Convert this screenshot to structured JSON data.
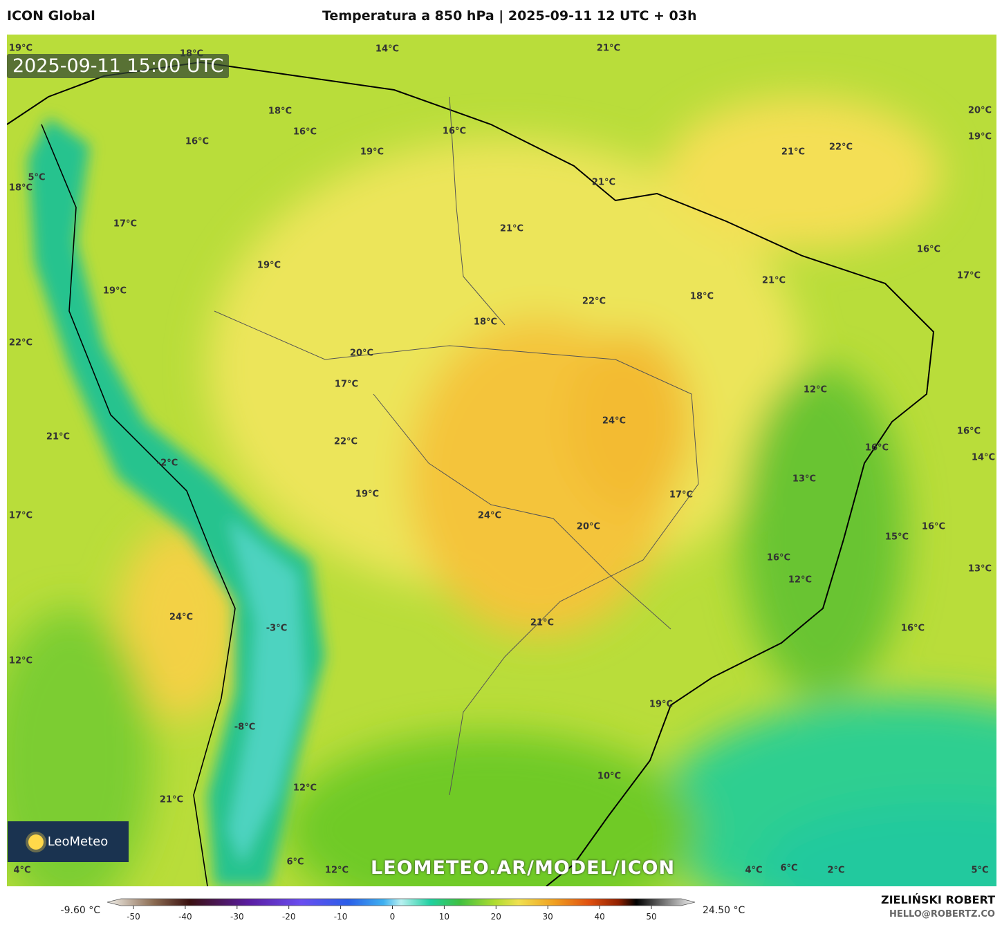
{
  "header": {
    "left": "ICON Global",
    "title": "Temperatura a 850 hPa | 2025-09-11 12 UTC + 03h"
  },
  "map": {
    "timestamp": "2025-09-11 15:00 UTC",
    "watermark": "LEOMETEO.AR/MODEL/ICON",
    "logo": "LeoMeteo",
    "labels": [
      "19°C",
      "18°C",
      "14°C",
      "21°C",
      "18°C",
      "16°C",
      "16°C",
      "16°C",
      "19°C",
      "21°C",
      "22°C",
      "20°C",
      "19°C",
      "5°C",
      "18°C",
      "21°C",
      "17°C",
      "21°C",
      "19°C",
      "16°C",
      "17°C",
      "21°C",
      "19°C",
      "22°C",
      "18°C",
      "18°C",
      "22°C",
      "20°C",
      "17°C",
      "12°C",
      "24°C",
      "21°C",
      "22°C",
      "16°C",
      "16°C",
      "14°C",
      "-2°C",
      "13°C",
      "17°C",
      "19°C",
      "17°C",
      "24°C",
      "20°C",
      "16°C",
      "15°C",
      "16°C",
      "12°C",
      "13°C",
      "24°C",
      "21°C",
      "-3°C",
      "16°C",
      "12°C",
      "19°C",
      "-8°C",
      "10°C",
      "12°C",
      "21°C",
      "6°C",
      "12°C",
      "4°C",
      "4°C",
      "6°C",
      "2°C",
      "5°C"
    ]
  },
  "colorbar": {
    "min_label": "-9.60 °C",
    "max_label": "24.50 °C",
    "ticks": [
      -50,
      -40,
      -30,
      -20,
      -10,
      0,
      10,
      20,
      30,
      40,
      50
    ]
  },
  "footer": {
    "author": "ZIELIŃSKI ROBERT",
    "email": "HELLO@ROBERTZ.CO"
  }
}
